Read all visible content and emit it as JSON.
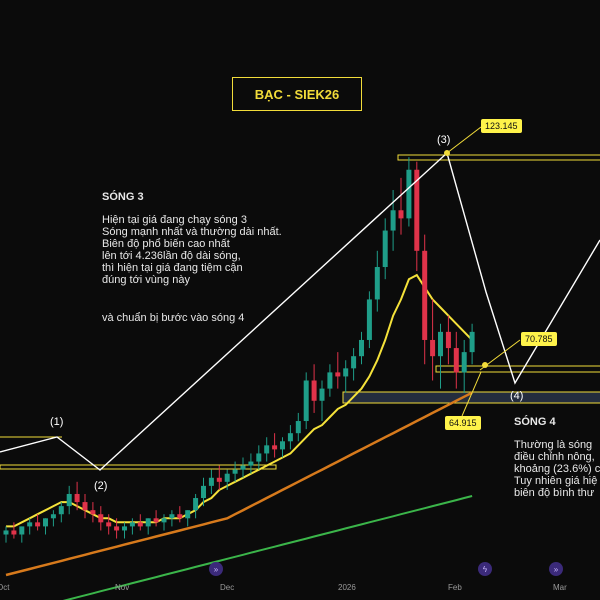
{
  "chart_data": {
    "type": "candlestick",
    "title": "BẠC - SIEK26",
    "x_ticks": [
      "Oct",
      "Nov",
      "Dec",
      "2026",
      "Feb",
      "Mar"
    ],
    "candles": [
      [
        30,
        32,
        28,
        31
      ],
      [
        31,
        33,
        29,
        30
      ],
      [
        30,
        32,
        28,
        32
      ],
      [
        32,
        34,
        30,
        33
      ],
      [
        33,
        35,
        31,
        32
      ],
      [
        32,
        34,
        30,
        34
      ],
      [
        34,
        36,
        32,
        35
      ],
      [
        35,
        38,
        33,
        37
      ],
      [
        37,
        42,
        35,
        40
      ],
      [
        40,
        43,
        36,
        38
      ],
      [
        38,
        40,
        34,
        36
      ],
      [
        36,
        38,
        33,
        35
      ],
      [
        35,
        37,
        31,
        33
      ],
      [
        33,
        35,
        30,
        32
      ],
      [
        32,
        34,
        29,
        31
      ],
      [
        31,
        33,
        29,
        32
      ],
      [
        32,
        34,
        30,
        33
      ],
      [
        33,
        35,
        31,
        32
      ],
      [
        32,
        34,
        30,
        34
      ],
      [
        34,
        36,
        32,
        33
      ],
      [
        33,
        35,
        31,
        34
      ],
      [
        34,
        36,
        32,
        35
      ],
      [
        35,
        37,
        33,
        34
      ],
      [
        34,
        36,
        32,
        36
      ],
      [
        36,
        40,
        34,
        39
      ],
      [
        39,
        44,
        37,
        42
      ],
      [
        42,
        46,
        40,
        44
      ],
      [
        44,
        47,
        41,
        43
      ],
      [
        43,
        46,
        41,
        45
      ],
      [
        45,
        48,
        43,
        46
      ],
      [
        46,
        49,
        44,
        47
      ],
      [
        47,
        50,
        45,
        48
      ],
      [
        48,
        52,
        46,
        50
      ],
      [
        50,
        54,
        48,
        52
      ],
      [
        52,
        55,
        49,
        51
      ],
      [
        51,
        54,
        49,
        53
      ],
      [
        53,
        57,
        51,
        55
      ],
      [
        55,
        60,
        53,
        58
      ],
      [
        58,
        70,
        56,
        68
      ],
      [
        68,
        72,
        60,
        63
      ],
      [
        63,
        68,
        58,
        66
      ],
      [
        66,
        72,
        64,
        70
      ],
      [
        70,
        75,
        66,
        69
      ],
      [
        69,
        73,
        65,
        71
      ],
      [
        71,
        76,
        68,
        74
      ],
      [
        74,
        80,
        72,
        78
      ],
      [
        78,
        90,
        76,
        88
      ],
      [
        88,
        100,
        85,
        96
      ],
      [
        96,
        108,
        93,
        105
      ],
      [
        105,
        115,
        100,
        110
      ],
      [
        110,
        118,
        104,
        108
      ],
      [
        108,
        123.1,
        106,
        120
      ],
      [
        120,
        122,
        95,
        100
      ],
      [
        100,
        104,
        72,
        78
      ],
      [
        78,
        88,
        68,
        74
      ],
      [
        74,
        82,
        66,
        80
      ],
      [
        80,
        84,
        72,
        76
      ],
      [
        76,
        80,
        66,
        70
      ],
      [
        70,
        78,
        64.9,
        75
      ],
      [
        75,
        82,
        72,
        80
      ]
    ],
    "ema_fast": [
      32,
      32,
      33,
      34,
      35,
      36,
      37,
      38,
      38,
      37,
      36,
      35,
      34,
      34,
      33,
      33,
      33,
      33,
      33,
      33,
      34,
      34,
      34,
      35,
      36,
      38,
      39,
      41,
      42,
      43,
      44,
      45,
      46,
      47,
      48,
      49,
      50,
      52,
      54,
      56,
      57,
      59,
      61,
      62,
      64,
      66,
      69,
      73,
      78,
      84,
      88,
      93,
      94,
      91,
      88,
      86,
      84,
      82,
      80,
      78
    ],
    "ema_slow": [
      20,
      20.5,
      21,
      21.5,
      22,
      22.5,
      23,
      23.5,
      24,
      24.5,
      25,
      25.5,
      26,
      26.5,
      27,
      27.5,
      28,
      28.5,
      29,
      29.5,
      30,
      30.5,
      31,
      31.5,
      32,
      32.5,
      33,
      33.5,
      34,
      35,
      36,
      37,
      38,
      39,
      40,
      41,
      42,
      43,
      44,
      45,
      46,
      47,
      48,
      49,
      50,
      51,
      52,
      53,
      54,
      55,
      56,
      57,
      58,
      59,
      60,
      61,
      62,
      63,
      64,
      65
    ],
    "sma_long": [
      10,
      10.5,
      11,
      11.5,
      12,
      12.5,
      13,
      13.5,
      14,
      14.5,
      15,
      15.5,
      16,
      16.5,
      17,
      17.5,
      18,
      18.5,
      19,
      19.5,
      20,
      20.5,
      21,
      21.5,
      22,
      22.5,
      23,
      23.5,
      24,
      24.5,
      25,
      25.5,
      26,
      26.5,
      27,
      27.5,
      28,
      28.5,
      29,
      29.5,
      30,
      30.5,
      31,
      31.5,
      32,
      32.5,
      33,
      33.5,
      34,
      34.5,
      35,
      35.5,
      36,
      36.5,
      37,
      37.5,
      38,
      38.5,
      39,
      39.5
    ],
    "price_labels": [
      "123.145",
      "70.785",
      "64.915"
    ],
    "wave_labels": [
      "(1)",
      "(2)",
      "(3)",
      "(4)"
    ],
    "colors": {
      "up": "#1f9e89",
      "down": "#e0334a",
      "ema_fast": "#f5e23a",
      "ema_slow": "#d77a1c",
      "sma_long": "#3bb54a",
      "wave_line": "#ffffff",
      "zone": "#f2dc3a",
      "zone_fill": "#3a4a6a"
    }
  },
  "notes": {
    "wave3_title": "SÓNG 3",
    "wave3_body": "Hiện tại giá đang chạy sóng 3\nSóng mạnh nhất và thường dài nhất.\nBiên độ phổ biến cao nhất\nlên tới 4.236lần độ dài sóng,\nthì hiện tại giá đang tiệm cận\nđúng tới vùng này",
    "wave3_next": "và chuẩn bị bước vào sóng 4",
    "wave4_title": "SÓNG 4",
    "wave4_body": "Thường là sóng\nđiều chỉnh nông,\nkhoảng (23.6%) c\nTuy nhiên giá hiệ\nbiên độ bình thư"
  },
  "events": {
    "icon": "event-icon",
    "glyph": "»",
    "flash_glyph": "ϟ"
  }
}
